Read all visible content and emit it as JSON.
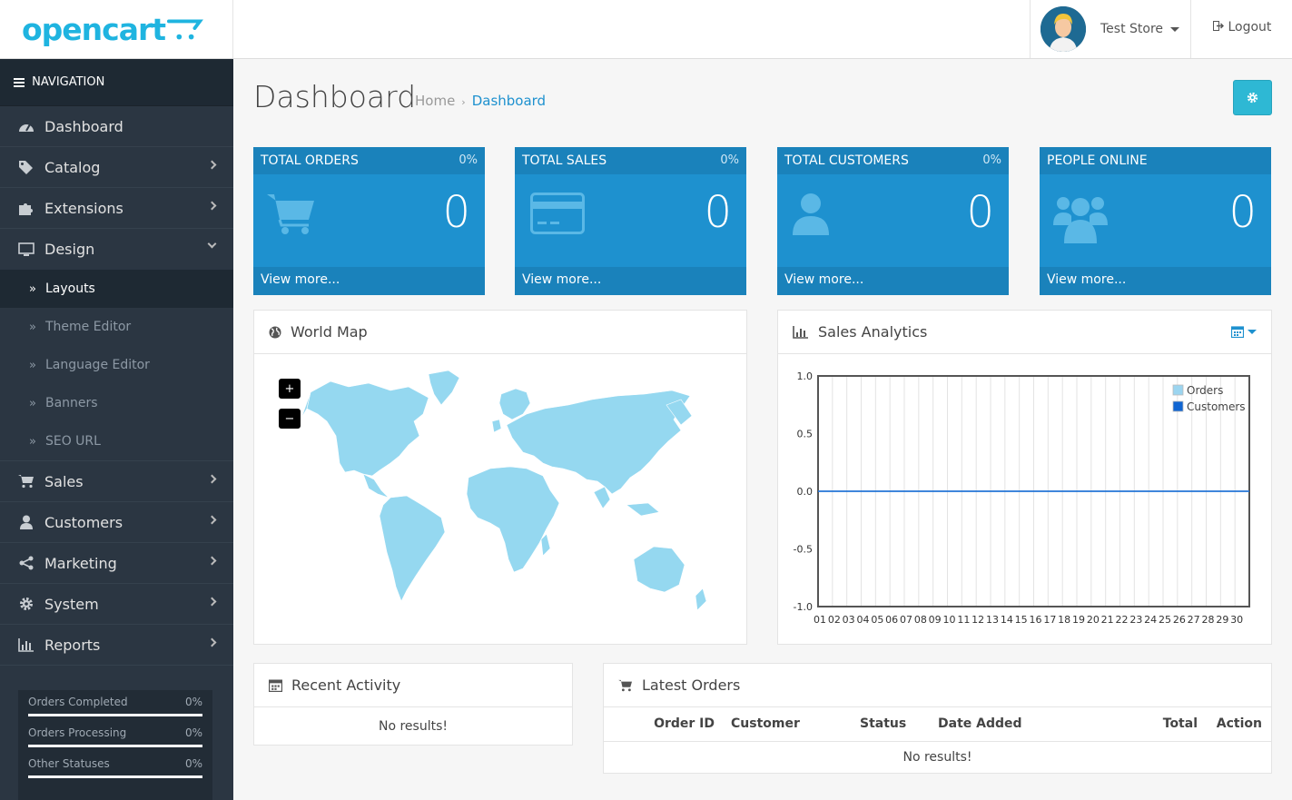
{
  "header": {
    "logo_text": "opencart",
    "store_name": "Test Store",
    "logout_label": "Logout"
  },
  "sidebar": {
    "nav_heading": "NAVIGATION",
    "items": [
      {
        "label": "Dashboard",
        "icon": "dashboard-icon"
      },
      {
        "label": "Catalog",
        "icon": "tags-icon"
      },
      {
        "label": "Extensions",
        "icon": "puzzle-icon"
      },
      {
        "label": "Design",
        "icon": "monitor-icon"
      },
      {
        "label": "Sales",
        "icon": "cart-icon"
      },
      {
        "label": "Customers",
        "icon": "user-icon"
      },
      {
        "label": "Marketing",
        "icon": "share-icon"
      },
      {
        "label": "System",
        "icon": "gear-icon"
      },
      {
        "label": "Reports",
        "icon": "bar-chart-icon"
      }
    ],
    "design_sub": [
      "Layouts",
      "Theme Editor",
      "Language Editor",
      "Banners",
      "SEO URL"
    ],
    "stats": [
      {
        "label": "Orders Completed",
        "value": "0%"
      },
      {
        "label": "Orders Processing",
        "value": "0%"
      },
      {
        "label": "Other Statuses",
        "value": "0%"
      }
    ]
  },
  "page": {
    "title": "Dashboard",
    "breadcrumb": [
      "Home",
      "Dashboard"
    ]
  },
  "tiles": [
    {
      "title": "TOTAL ORDERS",
      "pct": "0%",
      "value": "0",
      "link": "View more...",
      "icon": "shopping-cart-icon"
    },
    {
      "title": "TOTAL SALES",
      "pct": "0%",
      "value": "0",
      "link": "View more...",
      "icon": "credit-card-icon"
    },
    {
      "title": "TOTAL CUSTOMERS",
      "pct": "0%",
      "value": "0",
      "link": "View more...",
      "icon": "user-icon"
    },
    {
      "title": "PEOPLE ONLINE",
      "pct": "",
      "value": "0",
      "link": "View more...",
      "icon": "users-icon"
    }
  ],
  "map": {
    "title": "World Map",
    "zoom_in": "+",
    "zoom_out": "−"
  },
  "sales": {
    "title": "Sales Analytics"
  },
  "chart_data": {
    "type": "line",
    "x": [
      "01",
      "02",
      "03",
      "04",
      "05",
      "06",
      "07",
      "08",
      "09",
      "10",
      "11",
      "12",
      "13",
      "14",
      "15",
      "16",
      "17",
      "18",
      "19",
      "20",
      "21",
      "22",
      "23",
      "24",
      "25",
      "26",
      "27",
      "28",
      "29",
      "30"
    ],
    "series": [
      {
        "name": "Orders",
        "values": [
          0,
          0,
          0,
          0,
          0,
          0,
          0,
          0,
          0,
          0,
          0,
          0,
          0,
          0,
          0,
          0,
          0,
          0,
          0,
          0,
          0,
          0,
          0,
          0,
          0,
          0,
          0,
          0,
          0,
          0
        ],
        "color": "#9bd5f0"
      },
      {
        "name": "Customers",
        "values": [
          0,
          0,
          0,
          0,
          0,
          0,
          0,
          0,
          0,
          0,
          0,
          0,
          0,
          0,
          0,
          0,
          0,
          0,
          0,
          0,
          0,
          0,
          0,
          0,
          0,
          0,
          0,
          0,
          0,
          0
        ],
        "color": "#1065d2"
      }
    ],
    "yticks": [
      "1.0",
      "0.5",
      "0.0",
      "-0.5",
      "-1.0"
    ],
    "ylim": [
      -1,
      1
    ],
    "grid": true,
    "legend": "top-right"
  },
  "activity": {
    "title": "Recent Activity",
    "empty": "No results!"
  },
  "orders": {
    "title": "Latest Orders",
    "columns": [
      "Order ID",
      "Customer",
      "Status",
      "Date Added",
      "Total",
      "Action"
    ],
    "empty": "No results!"
  },
  "colors": {
    "primary": "#1e91cf",
    "tile_dark": "#1a82bb",
    "sidebar": "#2b3642",
    "sidebar_dark": "#1e2933",
    "info_button": "#2eb8d4",
    "map_land": "#95d8f0"
  }
}
